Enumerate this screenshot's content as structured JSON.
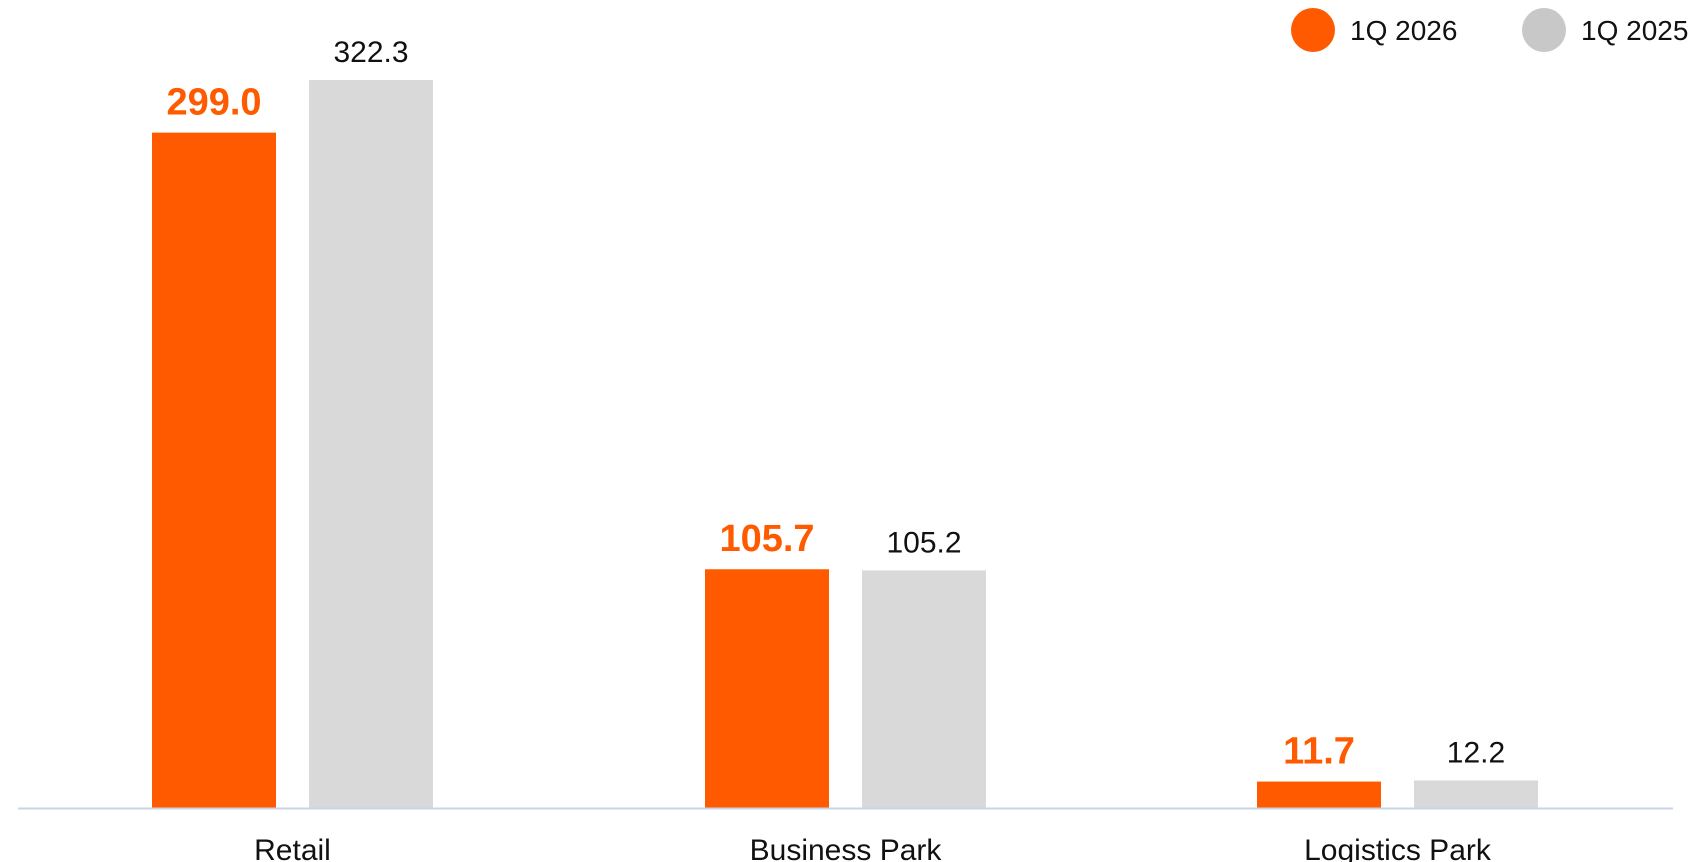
{
  "chart_data": {
    "type": "bar",
    "categories": [
      "Retail",
      "Business Park",
      "Logistics Park"
    ],
    "series": [
      {
        "name": "1Q 2026",
        "values": [
          299.0,
          105.7,
          11.7
        ],
        "labels": [
          "299.0",
          "105.7",
          "11.7"
        ],
        "color": "#FF5A00",
        "label_color": "#FF5A00"
      },
      {
        "name": "1Q 2025",
        "values": [
          322.3,
          105.2,
          12.2
        ],
        "labels": [
          "322.3",
          "105.2",
          "12.2"
        ],
        "color": "#D9D9D9",
        "label_color": "#111111"
      }
    ],
    "ylim": [
      0,
      330
    ],
    "legend_position": "top-right",
    "grid": false,
    "axis_color": "#C9D3E6"
  }
}
